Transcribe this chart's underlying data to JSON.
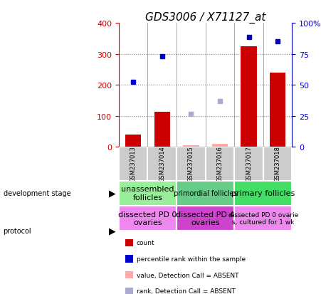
{
  "title": "GDS3006 / X71127_at",
  "samples": [
    "GSM237013",
    "GSM237014",
    "GSM237015",
    "GSM237016",
    "GSM237017",
    "GSM237018"
  ],
  "count_values": [
    40,
    113,
    null,
    null,
    325,
    240
  ],
  "count_absent": [
    null,
    null,
    5,
    10,
    null,
    null
  ],
  "percentile_values": [
    210,
    293,
    null,
    null,
    355,
    340
  ],
  "percentile_absent": [
    null,
    null,
    105,
    148,
    null,
    null
  ],
  "ylim_left": [
    0,
    400
  ],
  "ylim_right": [
    0,
    100
  ],
  "yticks_left": [
    0,
    100,
    200,
    300,
    400
  ],
  "yticks_right": [
    0,
    25,
    50,
    75,
    100
  ],
  "bar_color": "#cc0000",
  "bar_absent_color": "#ffaaaa",
  "dot_color": "#0000cc",
  "dot_absent_color": "#aaaacc",
  "development_stage_groups": [
    {
      "label": "unassembled\nfollicles",
      "start": 0,
      "end": 2,
      "color": "#99ee99",
      "fontsize": 8
    },
    {
      "label": "primordial follicles",
      "start": 2,
      "end": 4,
      "color": "#66cc88",
      "fontsize": 7
    },
    {
      "label": "primary follicles",
      "start": 4,
      "end": 6,
      "color": "#44dd66",
      "fontsize": 8
    }
  ],
  "protocol_groups": [
    {
      "label": "dissected PD 0\novaries",
      "start": 0,
      "end": 2,
      "color": "#ee88ee",
      "fontsize": 8
    },
    {
      "label": "dissected PD 4\novaries",
      "start": 2,
      "end": 4,
      "color": "#cc44cc",
      "fontsize": 8
    },
    {
      "label": "dissected PD 0 ovarie\ns, cultured for 1 wk",
      "start": 4,
      "end": 6,
      "color": "#ee88ee",
      "fontsize": 6.5
    }
  ],
  "legend_items": [
    {
      "label": "count",
      "color": "#cc0000"
    },
    {
      "label": "percentile rank within the sample",
      "color": "#0000cc"
    },
    {
      "label": "value, Detection Call = ABSENT",
      "color": "#ffaaaa"
    },
    {
      "label": "rank, Detection Call = ABSENT",
      "color": "#aaaacc"
    }
  ],
  "left_axis_color": "#cc0000",
  "right_axis_color": "#0000cc",
  "grid_dotted_color": "#888888",
  "bg_color": "#ffffff",
  "sample_bg": "#cccccc",
  "label_fontsize": 7,
  "title_fontsize": 11,
  "tick_fontsize": 8,
  "sample_fontsize": 6
}
